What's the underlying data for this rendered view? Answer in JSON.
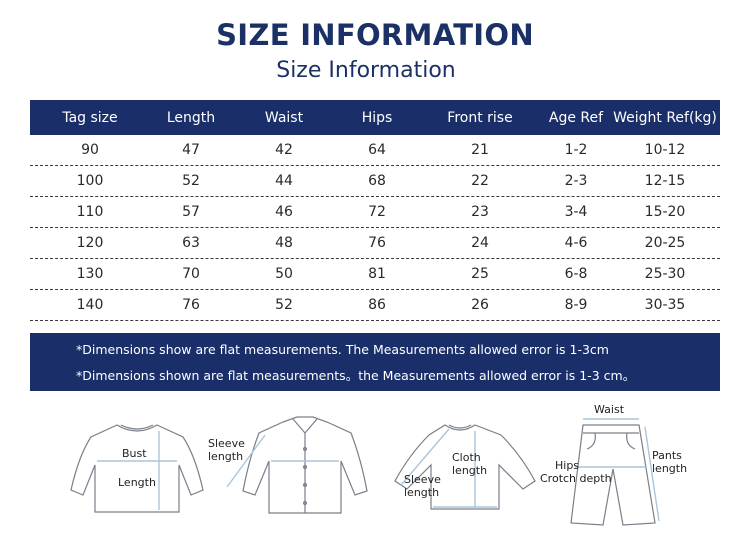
{
  "header": {
    "title": "SIZE INFORMATION",
    "subtitle": "Size Information"
  },
  "table": {
    "columns": [
      "Tag size",
      "Length",
      "Waist",
      "Hips",
      "Front rise",
      "Age Ref",
      "Weight Ref(kg)"
    ],
    "rows": [
      [
        "90",
        "47",
        "42",
        "64",
        "21",
        "1-2",
        "10-12"
      ],
      [
        "100",
        "52",
        "44",
        "68",
        "22",
        "2-3",
        "12-15"
      ],
      [
        "110",
        "57",
        "46",
        "72",
        "23",
        "3-4",
        "15-20"
      ],
      [
        "120",
        "63",
        "48",
        "76",
        "24",
        "4-6",
        "20-25"
      ],
      [
        "130",
        "70",
        "50",
        "81",
        "25",
        "6-8",
        "25-30"
      ],
      [
        "140",
        "76",
        "52",
        "86",
        "26",
        "8-9",
        "30-35"
      ]
    ]
  },
  "notes": [
    "*Dimensions show are flat measurements. The Measurements allowed error is 1-3cm",
    "*Dimensions shown are flat measurements。the Measurements allowed error is 1-3 cm。"
  ],
  "diagrams": {
    "tshirt": {
      "bust": "Bust",
      "length": "Length"
    },
    "shirt": {
      "sleeve_length_1": "Sleeve",
      "sleeve_length_2": "length"
    },
    "sweater": {
      "cloth_length_1": "Cloth",
      "cloth_length_2": "length",
      "sleeve_length_1": "Sleeve",
      "sleeve_length_2": "length"
    },
    "pants": {
      "waist": "Waist",
      "hips": "Hips",
      "crotch_depth": "Crotch depth",
      "pants_length_1": "Pants",
      "pants_length_2": "length"
    }
  },
  "colors": {
    "navy": "#1a2f6a",
    "outline": "#7a7f88",
    "measure_line": "#a9c6dc"
  }
}
